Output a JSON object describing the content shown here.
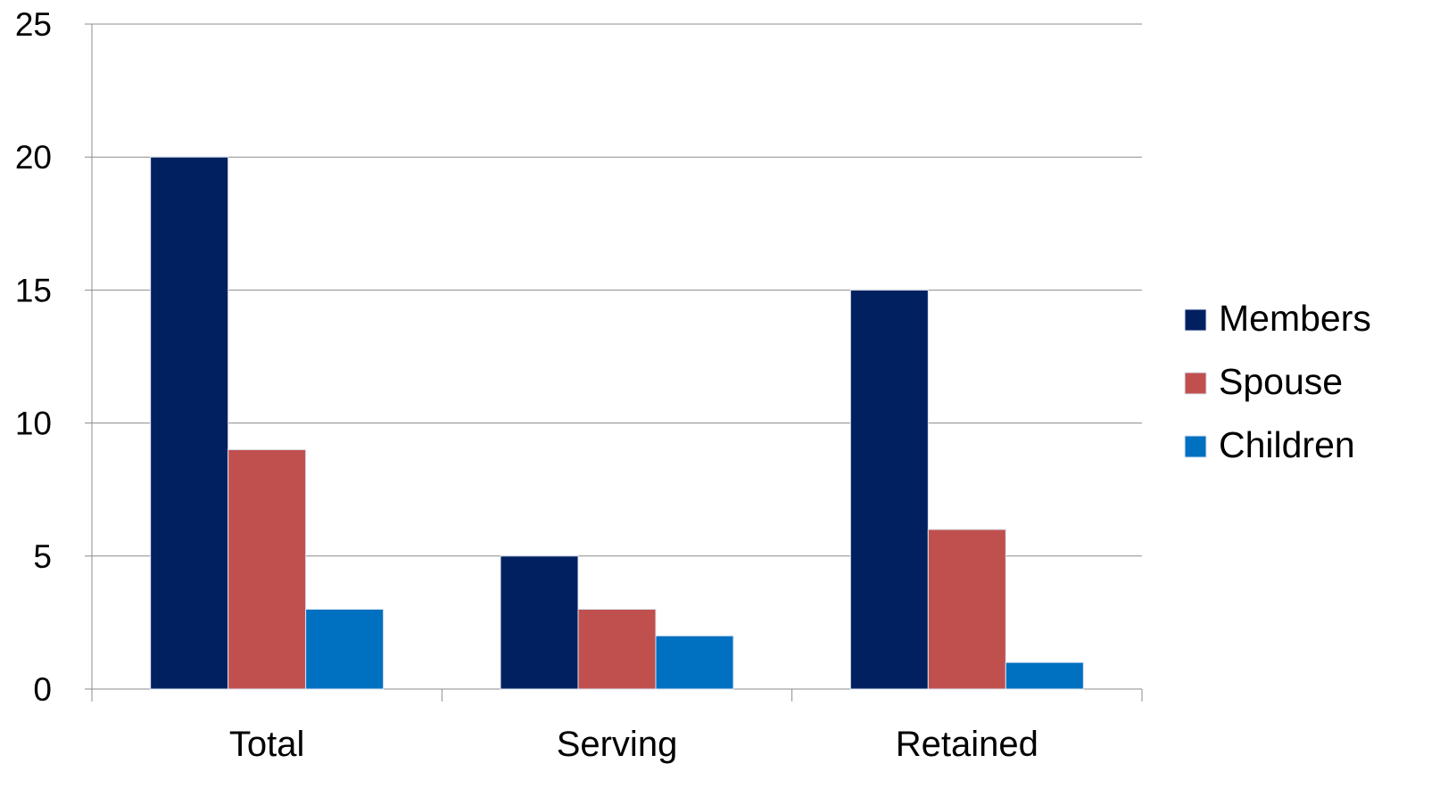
{
  "chart_data": {
    "type": "bar",
    "title": "",
    "xlabel": "",
    "ylabel": "",
    "categories": [
      "Total",
      "Serving",
      "Retained"
    ],
    "series": [
      {
        "name": "Members",
        "values": [
          20,
          5,
          15
        ],
        "color": "#002060"
      },
      {
        "name": "Spouse",
        "values": [
          9,
          3,
          6
        ],
        "color": "#C0504D"
      },
      {
        "name": "Children",
        "values": [
          3,
          2,
          1
        ],
        "color": "#0070C0"
      }
    ],
    "ylim": [
      0,
      25
    ],
    "yticks": [
      "0",
      "5",
      "10",
      "15",
      "20",
      "25"
    ],
    "grid": true,
    "legend_position": "right"
  }
}
